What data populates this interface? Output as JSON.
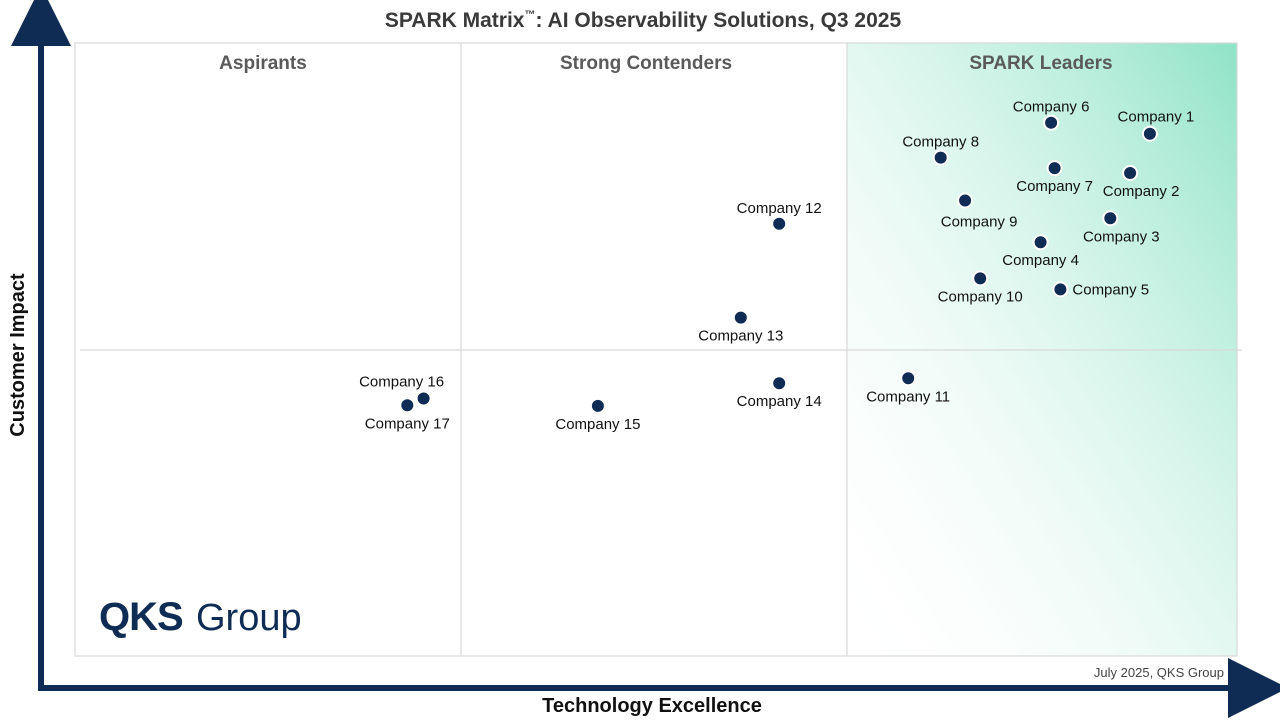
{
  "chart_data": {
    "type": "scatter",
    "title": "SPARK Matrix",
    "title_tm": "™",
    "title_rest": ": AI Observability Solutions, Q3 2025",
    "xlabel": "Technology Excellence",
    "ylabel": "Customer Impact",
    "xlim": [
      0,
      100
    ],
    "ylim": [
      0,
      100
    ],
    "quadrants": [
      "Aspirants",
      "Strong Contenders",
      "SPARK Leaders"
    ],
    "footnote": "July 2025, QKS Group",
    "logo": {
      "bold": "QKS",
      "regular": "Group"
    },
    "colors": {
      "point": "#0f2c55",
      "axis": "#0f2c55",
      "leader_gradient": "#8fe3c7",
      "grid": "#d8d8d8"
    },
    "points": [
      {
        "name": "Company 1",
        "x": 92.5,
        "y": 85.2,
        "label_pos": "above-right"
      },
      {
        "name": "Company 2",
        "x": 90.8,
        "y": 78.8,
        "label_pos": "below-right"
      },
      {
        "name": "Company 3",
        "x": 89.1,
        "y": 71.4,
        "label_pos": "below-right"
      },
      {
        "name": "Company 4",
        "x": 83.1,
        "y": 67.5,
        "label_pos": "below"
      },
      {
        "name": "Company 5",
        "x": 84.8,
        "y": 59.8,
        "label_pos": "right"
      },
      {
        "name": "Company 6",
        "x": 84.0,
        "y": 87.0,
        "label_pos": "above"
      },
      {
        "name": "Company 7",
        "x": 84.3,
        "y": 79.6,
        "label_pos": "below"
      },
      {
        "name": "Company 8",
        "x": 74.5,
        "y": 81.3,
        "label_pos": "above"
      },
      {
        "name": "Company 9",
        "x": 76.6,
        "y": 74.3,
        "label_pos": "below-left"
      },
      {
        "name": "Company 10",
        "x": 77.9,
        "y": 61.6,
        "label_pos": "below"
      },
      {
        "name": "Company 11",
        "x": 71.7,
        "y": 45.3,
        "label_pos": "below"
      },
      {
        "name": "Company 12",
        "x": 60.6,
        "y": 70.5,
        "label_pos": "above"
      },
      {
        "name": "Company 13",
        "x": 57.3,
        "y": 55.2,
        "label_pos": "below"
      },
      {
        "name": "Company 14",
        "x": 60.6,
        "y": 44.5,
        "label_pos": "below"
      },
      {
        "name": "Company 15",
        "x": 45.0,
        "y": 40.8,
        "label_pos": "below"
      },
      {
        "name": "Company 16",
        "x": 30.0,
        "y": 42.0,
        "label_pos": "above-left"
      },
      {
        "name": "Company 17",
        "x": 28.6,
        "y": 40.9,
        "label_pos": "below"
      }
    ]
  }
}
